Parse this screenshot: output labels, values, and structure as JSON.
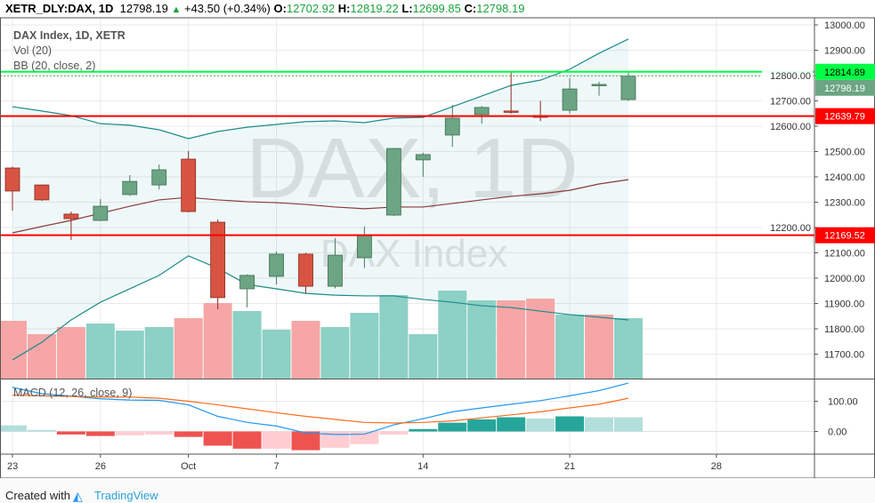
{
  "header": {
    "symbol": "XETR_DLY:DAX, 1D",
    "last": "12798.19",
    "change": "+43.50 (+0.34%)",
    "o_label": "O:",
    "o": "12702.92",
    "h_label": "H:",
    "h": "12819.22",
    "l_label": "L:",
    "l": "12699.85",
    "c_label": "C:",
    "c": "12798.19"
  },
  "legend": {
    "title": "DAX Index, 1D, XETR",
    "vol": "Vol (20)",
    "bb": "BB (20, close, 2)",
    "macd": "MACD (12, 26, close, 9)"
  },
  "watermark": {
    "line1": "DAX, 1D",
    "line2": "DAX Index"
  },
  "footer": {
    "created": "Created with",
    "brand": "TradingView"
  },
  "colors": {
    "up": "#6ba583",
    "down": "#d75442",
    "vol_up": "#8dd0c5",
    "vol_down": "#f6a6a6",
    "bb": "#1d8a8a",
    "bb_mid": "#8b3a3a",
    "macd": "#2196f3",
    "signal": "#ff6d1f",
    "support_red": "#ff0000",
    "resist_green": "#00ff44"
  },
  "chart_data": {
    "type": "candlestick",
    "x_tick_labels": [
      {
        "label": "23",
        "index": 0
      },
      {
        "label": "26",
        "index": 3
      },
      {
        "label": "Oct",
        "index": 6
      },
      {
        "label": "7",
        "index": 9
      },
      {
        "label": "14",
        "index": 14
      },
      {
        "label": "21",
        "index": 19
      },
      {
        "label": "28",
        "index": 24
      }
    ],
    "price_ticks": [
      "13000.00",
      "12900.00",
      "12800.00",
      "12700.00",
      "12600.00",
      "12500.00",
      "12400.00",
      "12300.00",
      "12200.00",
      "12100.00",
      "12000.00",
      "11900.00",
      "11800.00",
      "11700.00"
    ],
    "price_range": [
      11640,
      13030
    ],
    "candles": [
      {
        "o": 12435,
        "h": 12440,
        "l": 12267,
        "c": 12344
      },
      {
        "o": 12368,
        "h": 12370,
        "l": 12305,
        "c": 12309
      },
      {
        "o": 12253,
        "h": 12263,
        "l": 12151,
        "c": 12235
      },
      {
        "o": 12228,
        "h": 12312,
        "l": 12225,
        "c": 12284
      },
      {
        "o": 12330,
        "h": 12407,
        "l": 12325,
        "c": 12382
      },
      {
        "o": 12368,
        "h": 12449,
        "l": 12350,
        "c": 12428
      },
      {
        "o": 12470,
        "h": 12502,
        "l": 12260,
        "c": 12263
      },
      {
        "o": 12221,
        "h": 12232,
        "l": 11877,
        "c": 11923
      },
      {
        "o": 11958,
        "h": 12015,
        "l": 11884,
        "c": 12011
      },
      {
        "o": 12007,
        "h": 12105,
        "l": 11975,
        "c": 12095
      },
      {
        "o": 12095,
        "h": 12100,
        "l": 11940,
        "c": 11968
      },
      {
        "o": 11968,
        "h": 12158,
        "l": 11960,
        "c": 12091
      },
      {
        "o": 12081,
        "h": 12204,
        "l": 12040,
        "c": 12168
      },
      {
        "o": 12249,
        "h": 12512,
        "l": 12245,
        "c": 12512
      },
      {
        "o": 12467,
        "h": 12495,
        "l": 12400,
        "c": 12488
      },
      {
        "o": 12565,
        "h": 12684,
        "l": 12518,
        "c": 12632
      },
      {
        "o": 12646,
        "h": 12680,
        "l": 12610,
        "c": 12674
      },
      {
        "o": 12660,
        "h": 12818,
        "l": 12650,
        "c": 12655
      },
      {
        "o": 12642,
        "h": 12700,
        "l": 12620,
        "c": 12635
      },
      {
        "o": 12663,
        "h": 12790,
        "l": 12650,
        "c": 12747
      },
      {
        "o": 12762,
        "h": 12775,
        "l": 12720,
        "c": 12765
      },
      {
        "o": 12705,
        "h": 12819,
        "l": 12700,
        "c": 12798
      }
    ],
    "volume": [
      65,
      50,
      58,
      62,
      54,
      58,
      68,
      85,
      76,
      55,
      65,
      58,
      74,
      94,
      50,
      99,
      88,
      88,
      90,
      72,
      72,
      68
    ],
    "volume_up": [
      false,
      false,
      false,
      true,
      true,
      true,
      false,
      false,
      true,
      true,
      false,
      true,
      true,
      true,
      true,
      true,
      true,
      false,
      false,
      true,
      false,
      true
    ],
    "bb_upper": [
      12677,
      12660,
      12642,
      12610,
      12604,
      12586,
      12551,
      12579,
      12596,
      12607,
      12618,
      12621,
      12614,
      12632,
      12635,
      12677,
      12719,
      12761,
      12782,
      12825,
      12888,
      12944
    ],
    "bb_middle": [
      12179,
      12204,
      12228,
      12256,
      12284,
      12309,
      12319,
      12309,
      12302,
      12298,
      12291,
      12281,
      12274,
      12281,
      12281,
      12295,
      12309,
      12323,
      12333,
      12347,
      12372,
      12389
    ],
    "bb_lower": [
      11677,
      11747,
      11835,
      11905,
      11958,
      12011,
      12088,
      12039,
      11975,
      11958,
      11940,
      11933,
      11930,
      11930,
      11916,
      11905,
      11891,
      11884,
      11870,
      11856,
      11846,
      11835
    ],
    "levels": [
      {
        "value": "12814.89",
        "color": "#00ff44",
        "text": "#000"
      },
      {
        "value": "12639.79",
        "color": "#ff0000",
        "text": "#fff"
      },
      {
        "value": "12169.52",
        "color": "#ff0000",
        "text": "#fff"
      }
    ],
    "last_price": "12798.19",
    "macd_ticks": [
      "100.00",
      "0.00"
    ],
    "macd": [
      146,
      125,
      117,
      108,
      104,
      103,
      88,
      50,
      30,
      18,
      -5,
      -10,
      -9,
      22,
      42,
      65,
      78,
      90,
      102,
      118,
      135,
      160
    ],
    "signal": [
      120,
      118,
      116,
      114,
      114,
      110,
      100,
      88,
      75,
      62,
      50,
      40,
      30,
      28,
      30,
      35,
      45,
      55,
      65,
      78,
      90,
      110
    ],
    "histogram": [
      20,
      5,
      -10,
      -15,
      -13,
      -10,
      -18,
      -47,
      -57,
      -57,
      -62,
      -54,
      -42,
      -10,
      8,
      29,
      40,
      47,
      43,
      50,
      47,
      47
    ],
    "histogram_colors": [
      "#b2dfdb",
      "#b2dfdb",
      "#ef5350",
      "#ef5350",
      "#ffcdd2",
      "#ffcdd2",
      "#ef5350",
      "#ef5350",
      "#ef5350",
      "#ffcdd2",
      "#ef5350",
      "#ffcdd2",
      "#ffcdd2",
      "#ffcdd2",
      "#26a69a",
      "#26a69a",
      "#26a69a",
      "#26a69a",
      "#b2dfdb",
      "#26a69a",
      "#b2dfdb",
      "#b2dfdb"
    ]
  }
}
